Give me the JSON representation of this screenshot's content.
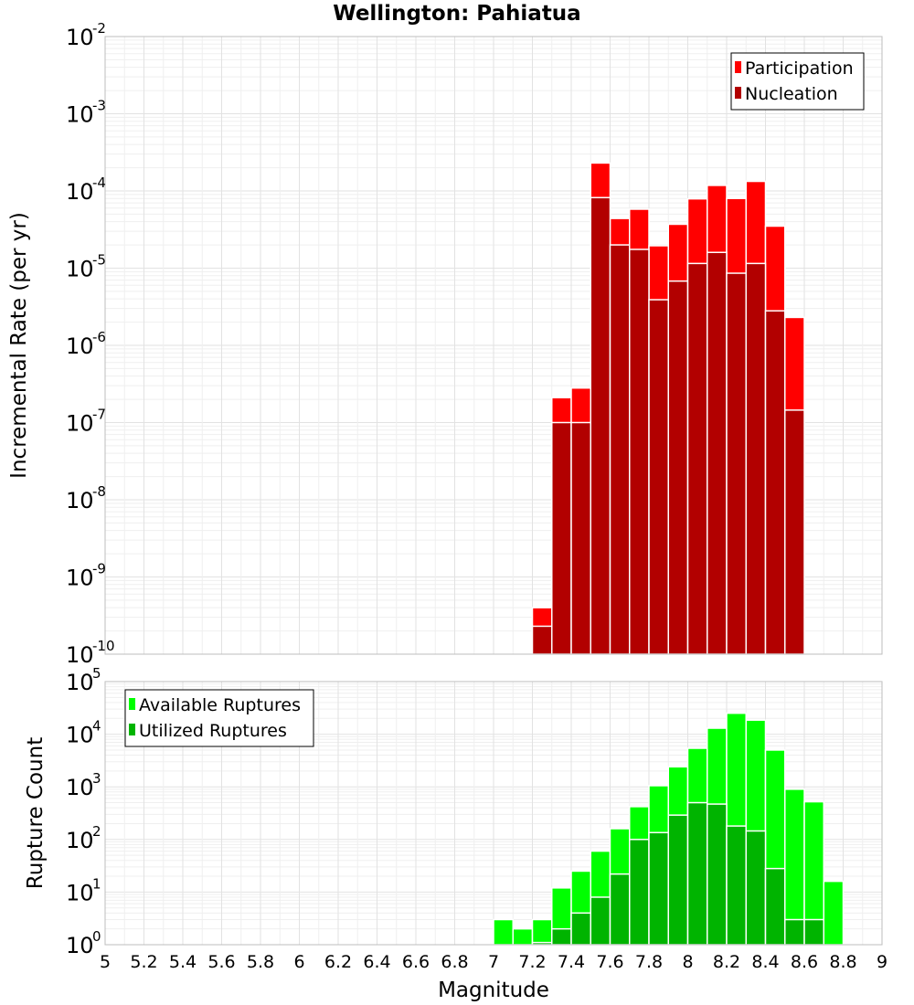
{
  "title": "Wellington: Pahiatua",
  "chart_data": [
    {
      "type": "bar",
      "scale": "log",
      "ylabel": "Incremental Rate (per yr)",
      "ylim_exp": [
        -10,
        -2
      ],
      "x": [
        7.25,
        7.35,
        7.45,
        7.55,
        7.65,
        7.75,
        7.85,
        7.95,
        8.05,
        8.15,
        8.25,
        8.35,
        8.45,
        8.55
      ],
      "series": [
        {
          "name": "Participation",
          "color": "#ff0000",
          "values": [
            4e-10,
            2.1e-07,
            2.8e-07,
            0.00023,
            4.4e-05,
            5.8e-05,
            1.95e-05,
            3.7e-05,
            7.9e-05,
            0.000118,
            8e-05,
            0.000133,
            3.5e-05,
            2.3e-06
          ]
        },
        {
          "name": "Nucleation",
          "color": "#b20000",
          "values": [
            2.3e-10,
            1e-07,
            1e-07,
            8.2e-05,
            2e-05,
            1.75e-05,
            3.9e-06,
            6.8e-06,
            1.15e-05,
            1.6e-05,
            8.6e-06,
            1.15e-05,
            2.8e-06,
            1.45e-07
          ]
        }
      ],
      "legend": [
        "Participation",
        "Nucleation"
      ],
      "legend_position": "top-right",
      "grid": true
    },
    {
      "type": "bar",
      "scale": "log",
      "ylabel": "Rupture Count",
      "xlabel": "Magnitude",
      "ylim_exp": [
        0,
        5
      ],
      "x": [
        7.05,
        7.15,
        7.25,
        7.35,
        7.45,
        7.55,
        7.65,
        7.75,
        7.85,
        7.95,
        8.05,
        8.15,
        8.25,
        8.35,
        8.45,
        8.55,
        8.65,
        8.75
      ],
      "series": [
        {
          "name": "Available Ruptures",
          "color": "#00ff00",
          "values": [
            3,
            2,
            3,
            12,
            25,
            60,
            160,
            420,
            1050,
            2400,
            5400,
            13000,
            25000,
            18500,
            5000,
            900,
            520,
            16
          ]
        },
        {
          "name": "Utilized Ruptures",
          "color": "#00b400",
          "values": [
            0,
            0,
            1.1,
            2,
            4,
            8,
            22,
            100,
            135,
            290,
            500,
            470,
            180,
            145,
            28,
            3,
            3,
            0
          ]
        }
      ],
      "legend": [
        "Available Ruptures",
        "Utilized Ruptures"
      ],
      "legend_position": "top-left",
      "grid": true
    }
  ],
  "x_ticks": [
    "5",
    "5.2",
    "5.4",
    "5.6",
    "5.8",
    "6",
    "6.2",
    "6.4",
    "6.6",
    "6.8",
    "7",
    "7.2",
    "7.4",
    "7.6",
    "7.8",
    "8",
    "8.2",
    "8.4",
    "8.6",
    "8.8",
    "9"
  ],
  "xlim": [
    5,
    9
  ],
  "bar_width": 0.1
}
